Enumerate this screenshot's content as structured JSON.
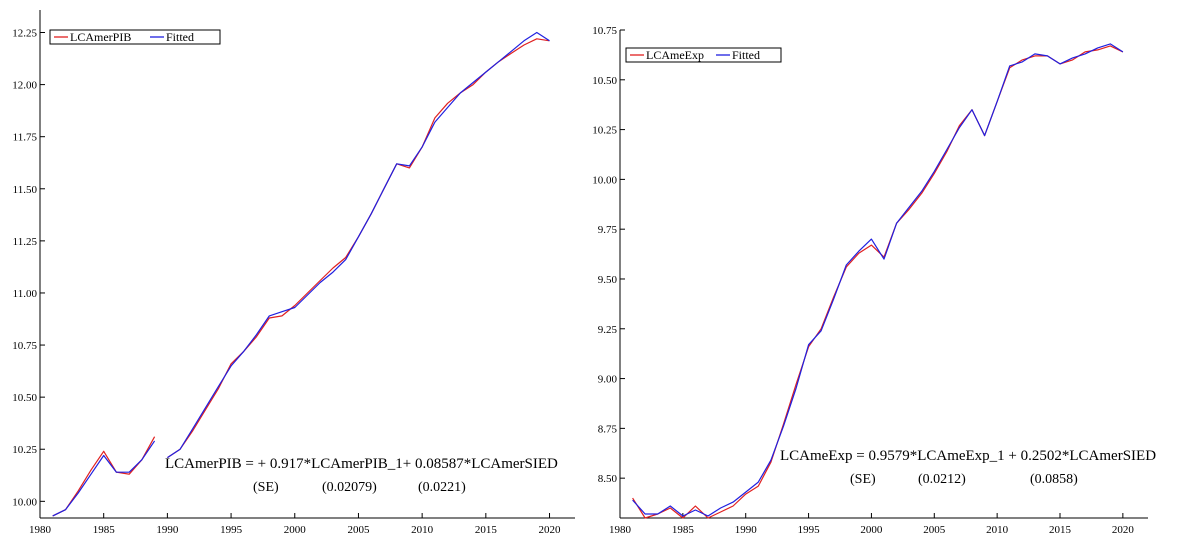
{
  "chart_data": [
    {
      "type": "line",
      "title": "",
      "xlabel": "",
      "ylabel": "",
      "xlim": [
        1980,
        2022
      ],
      "ylim": [
        9.92,
        12.31
      ],
      "xticks": [
        1980,
        1985,
        1990,
        1995,
        2000,
        2005,
        2010,
        2015,
        2020
      ],
      "yticks": [
        10.0,
        10.25,
        10.5,
        10.75,
        11.0,
        11.25,
        11.5,
        11.75,
        12.0,
        12.25
      ],
      "ytick_labels": [
        "10.00",
        "10.25",
        "10.50",
        "10.75",
        "11.00",
        "11.25",
        "11.50",
        "11.75",
        "12.00",
        "12.25"
      ],
      "grid": false,
      "legend_position": "top-left",
      "series": [
        {
          "name": "LCAmerPIB",
          "color": "#e02020",
          "x": [
            1981,
            1982,
            1983,
            1984,
            1985,
            1986,
            1987,
            1988,
            1989,
            1990,
            1991,
            1992,
            1993,
            1994,
            1995,
            1996,
            1997,
            1998,
            1999,
            2000,
            2001,
            2002,
            2003,
            2004,
            2005,
            2006,
            2007,
            2008,
            2009,
            2010,
            2011,
            2012,
            2013,
            2014,
            2015,
            2016,
            2017,
            2018,
            2019,
            2020
          ],
          "y": [
            9.93,
            9.96,
            10.05,
            10.15,
            10.24,
            10.14,
            10.13,
            10.2,
            10.31,
            10.21,
            10.25,
            10.34,
            10.44,
            10.54,
            10.66,
            10.72,
            10.79,
            10.88,
            10.89,
            10.94,
            11.0,
            11.06,
            11.12,
            11.17,
            11.27,
            11.38,
            11.5,
            11.62,
            11.6,
            11.7,
            11.84,
            11.91,
            11.96,
            12.0,
            12.06,
            12.11,
            12.15,
            12.19,
            12.22,
            12.21
          ],
          "gaps_after": [
            1989
          ]
        },
        {
          "name": "Fitted",
          "color": "#2020e0",
          "x": [
            1981,
            1982,
            1983,
            1984,
            1985,
            1986,
            1987,
            1988,
            1989,
            1990,
            1991,
            1992,
            1993,
            1994,
            1995,
            1996,
            1997,
            1998,
            1999,
            2000,
            2001,
            2002,
            2003,
            2004,
            2005,
            2006,
            2007,
            2008,
            2009,
            2010,
            2011,
            2012,
            2013,
            2014,
            2015,
            2016,
            2017,
            2018,
            2019,
            2020
          ],
          "y": [
            9.93,
            9.96,
            10.04,
            10.13,
            10.22,
            10.14,
            10.14,
            10.2,
            10.29,
            10.21,
            10.25,
            10.35,
            10.45,
            10.55,
            10.65,
            10.72,
            10.8,
            10.89,
            10.91,
            10.93,
            10.99,
            11.05,
            11.1,
            11.16,
            11.27,
            11.38,
            11.5,
            11.62,
            11.61,
            11.7,
            11.82,
            11.89,
            11.96,
            12.01,
            12.06,
            12.11,
            12.16,
            12.21,
            12.25,
            12.21
          ],
          "gaps_after": [
            1989
          ]
        }
      ],
      "equation": {
        "line1": "LCAmerPIB = + 0.917*LCAmerPIB_1+ 0.08587*LCAmerSIED",
        "se_label": "(SE)",
        "se_values": [
          "(0.02079)",
          "(0.0221)"
        ]
      }
    },
    {
      "type": "line",
      "title": "",
      "xlabel": "",
      "ylabel": "",
      "xlim": [
        1980,
        2022
      ],
      "ylim": [
        8.3,
        10.75
      ],
      "xticks": [
        1980,
        1985,
        1990,
        1995,
        2000,
        2005,
        2010,
        2015,
        2020
      ],
      "yticks": [
        8.5,
        8.75,
        9.0,
        9.25,
        9.5,
        9.75,
        10.0,
        10.25,
        10.5,
        10.75
      ],
      "ytick_labels": [
        "8.50",
        "8.75",
        "9.00",
        "9.25",
        "9.50",
        "9.75",
        "10.00",
        "10.25",
        "10.50",
        "10.75"
      ],
      "grid": false,
      "legend_position": "top-left",
      "series": [
        {
          "name": "LCAmeExp",
          "color": "#e02020",
          "x": [
            1981,
            1982,
            1983,
            1984,
            1985,
            1986,
            1987,
            1988,
            1989,
            1990,
            1991,
            1992,
            1993,
            1994,
            1995,
            1996,
            1997,
            1998,
            1999,
            2000,
            2001,
            2002,
            2003,
            2004,
            2005,
            2006,
            2007,
            2008,
            2009,
            2010,
            2011,
            2012,
            2013,
            2014,
            2015,
            2016,
            2017,
            2018,
            2019,
            2020
          ],
          "y": [
            8.4,
            8.3,
            8.32,
            8.35,
            8.3,
            8.36,
            8.3,
            8.33,
            8.36,
            8.42,
            8.46,
            8.58,
            8.77,
            8.97,
            9.16,
            9.25,
            9.41,
            9.56,
            9.63,
            9.67,
            9.61,
            9.78,
            9.85,
            9.93,
            10.03,
            10.14,
            10.27,
            10.35,
            10.22,
            10.39,
            10.56,
            10.6,
            10.62,
            10.62,
            10.58,
            10.6,
            10.64,
            10.65,
            10.67,
            10.64
          ]
        },
        {
          "name": "Fitted",
          "color": "#2020e0",
          "x": [
            1981,
            1982,
            1983,
            1984,
            1985,
            1986,
            1987,
            1988,
            1989,
            1990,
            1991,
            1992,
            1993,
            1994,
            1995,
            1996,
            1997,
            1998,
            1999,
            2000,
            2001,
            2002,
            2003,
            2004,
            2005,
            2006,
            2007,
            2008,
            2009,
            2010,
            2011,
            2012,
            2013,
            2014,
            2015,
            2016,
            2017,
            2018,
            2019,
            2020
          ],
          "y": [
            8.39,
            8.32,
            8.32,
            8.36,
            8.31,
            8.34,
            8.31,
            8.35,
            8.38,
            8.43,
            8.48,
            8.59,
            8.76,
            8.95,
            9.17,
            9.24,
            9.4,
            9.57,
            9.64,
            9.7,
            9.6,
            9.78,
            9.86,
            9.94,
            10.04,
            10.15,
            10.26,
            10.35,
            10.22,
            10.39,
            10.57,
            10.59,
            10.63,
            10.62,
            10.58,
            10.61,
            10.63,
            10.66,
            10.68,
            10.64
          ]
        }
      ],
      "equation": {
        "line1": "LCAmeExp = 0.9579*LCAmeExp_1 + 0.2502*LCAmerSIED",
        "se_label": "(SE)",
        "se_values": [
          "(0.0212)",
          "(0.0858)"
        ]
      }
    }
  ]
}
